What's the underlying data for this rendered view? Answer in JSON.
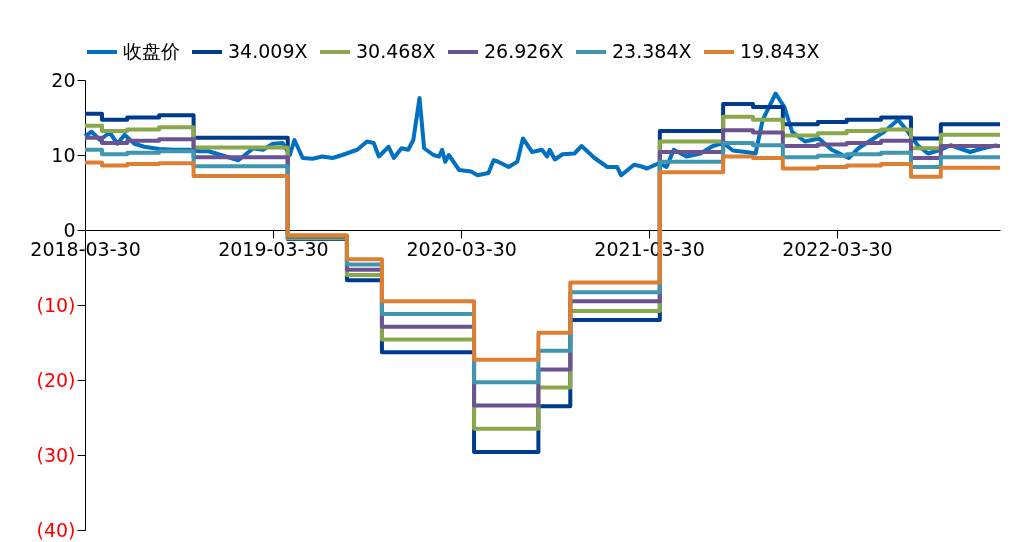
{
  "chart_data": {
    "type": "step",
    "legend": "top",
    "grid": false,
    "xlim": [
      "2018-03-30",
      "2023-02-10"
    ],
    "xticks": [
      "2018-03-30",
      "2019-03-30",
      "2020-03-30",
      "2021-03-30",
      "2022-03-30"
    ],
    "ylim": [
      -40,
      20
    ],
    "yticks": [
      20,
      10,
      0,
      {
        "value": -10,
        "label": "(10)"
      },
      {
        "value": -20,
        "label": "(20)"
      },
      {
        "value": -30,
        "label": "(30)"
      },
      {
        "value": -40,
        "label": "(40)"
      }
    ],
    "x": [
      "2018-03-30",
      "2018-05-02",
      "2018-06-20",
      "2018-08-21",
      "2018-10-27",
      "2019-04-28",
      "2019-08-21",
      "2019-10-28",
      "2020-04-24",
      "2020-08-27",
      "2020-10-28",
      "2021-04-20",
      "2021-08-21",
      "2021-10-18",
      "2021-12-15",
      "2022-02-21",
      "2022-04-18",
      "2022-06-24",
      "2022-08-21",
      "2022-10-18",
      "2023-02-10"
    ],
    "series": [
      {
        "name": "收盘价",
        "type": "line",
        "color": "#0070c0",
        "x": [
          "2018-03-30",
          "2018-04-12",
          "2018-04-28",
          "2018-05-17",
          "2018-06-01",
          "2018-06-15",
          "2018-07-04",
          "2018-07-23",
          "2018-08-21",
          "2018-09-19",
          "2018-10-18",
          "2018-11-06",
          "2018-11-25",
          "2018-12-24",
          "2019-01-22",
          "2019-02-20",
          "2019-03-11",
          "2019-03-30",
          "2019-04-18",
          "2019-05-02",
          "2019-05-11",
          "2019-05-27",
          "2019-06-15",
          "2019-07-04",
          "2019-07-24",
          "2019-08-12",
          "2019-09-10",
          "2019-09-29",
          "2019-10-12",
          "2019-10-22",
          "2019-11-10",
          "2019-11-20",
          "2019-12-05",
          "2019-12-18",
          "2019-12-28",
          "2020-01-09",
          "2020-01-18",
          "2020-02-05",
          "2020-02-16",
          "2020-02-22",
          "2020-02-28",
          "2020-03-06",
          "2020-03-26",
          "2020-04-18",
          "2020-05-01",
          "2020-05-22",
          "2020-06-01",
          "2020-06-10",
          "2020-06-30",
          "2020-07-17",
          "2020-07-28",
          "2020-08-15",
          "2020-09-03",
          "2020-09-13",
          "2020-09-18",
          "2020-09-28",
          "2020-10-13",
          "2020-11-05",
          "2020-11-19",
          "2020-12-14",
          "2021-01-08",
          "2021-01-27",
          "2021-02-04",
          "2021-03-01",
          "2021-03-14",
          "2021-03-26",
          "2021-04-18",
          "2021-05-03",
          "2021-05-17",
          "2021-06-11",
          "2021-07-08",
          "2021-08-01",
          "2021-08-21",
          "2021-09-09",
          "2021-10-04",
          "2021-10-23",
          "2021-11-06",
          "2021-12-01",
          "2021-12-18",
          "2022-01-02",
          "2022-01-27",
          "2022-02-23",
          "2022-03-20",
          "2022-04-22",
          "2022-05-11",
          "2022-06-05",
          "2022-06-30",
          "2022-07-27",
          "2022-08-15",
          "2022-09-03",
          "2022-09-23",
          "2022-10-18",
          "2022-11-06",
          "2022-12-14",
          "2023-01-08",
          "2023-02-04"
        ],
        "values": [
          12.5,
          13.1,
          12.0,
          13.0,
          11.5,
          12.7,
          11.5,
          11.1,
          10.8,
          10.7,
          10.7,
          10.5,
          10.5,
          9.9,
          9.3,
          10.9,
          10.7,
          11.5,
          11.6,
          10.0,
          12.0,
          9.6,
          9.5,
          9.8,
          9.6,
          10.0,
          10.7,
          11.8,
          11.6,
          9.8,
          11.1,
          9.6,
          10.9,
          10.7,
          12.0,
          17.6,
          10.9,
          10.0,
          9.8,
          10.7,
          9.1,
          10.0,
          8.0,
          7.8,
          7.3,
          7.6,
          9.3,
          9.1,
          8.4,
          9.1,
          12.2,
          10.4,
          10.7,
          9.8,
          10.7,
          9.4,
          10.1,
          10.2,
          11.2,
          9.6,
          8.4,
          8.4,
          7.3,
          8.7,
          8.5,
          8.2,
          8.9,
          8.4,
          10.7,
          9.8,
          10.2,
          11.2,
          11.6,
          10.6,
          10.4,
          10.2,
          14.7,
          18.2,
          16.4,
          13.1,
          11.8,
          12.2,
          10.7,
          9.6,
          10.9,
          12.0,
          13.1,
          14.7,
          13.1,
          11.3,
          10.2,
          10.7,
          11.3,
          10.4,
          10.9,
          11.3
        ]
      },
      {
        "name": "34.009X",
        "color": "#003a8c",
        "values": [
          15.5,
          14.7,
          15.0,
          15.3,
          12.3,
          -1.2,
          -6.7,
          -16.3,
          -29.6,
          -23.5,
          -12.0,
          13.2,
          16.8,
          16.4,
          14.1,
          14.4,
          14.7,
          15.0,
          12.2,
          14.1,
          14.1
        ]
      },
      {
        "name": "30.468X",
        "color": "#8aa84b",
        "values": [
          13.9,
          13.2,
          13.4,
          13.7,
          11.0,
          -1.1,
          -6.0,
          -14.6,
          -26.5,
          -21.0,
          -10.8,
          11.8,
          15.1,
          14.7,
          12.6,
          12.9,
          13.2,
          13.4,
          10.9,
          12.7,
          12.7
        ]
      },
      {
        "name": "26.926X",
        "color": "#6b5391",
        "values": [
          12.3,
          11.6,
          11.9,
          12.1,
          9.7,
          -0.9,
          -5.3,
          -12.9,
          -23.4,
          -18.6,
          -9.5,
          10.4,
          13.3,
          13.0,
          11.2,
          11.4,
          11.6,
          11.9,
          9.6,
          11.2,
          11.2
        ]
      },
      {
        "name": "23.384X",
        "color": "#3f96ae",
        "values": [
          10.7,
          10.1,
          10.3,
          10.5,
          8.5,
          -0.8,
          -4.6,
          -11.2,
          -20.3,
          -16.1,
          -8.3,
          9.1,
          11.6,
          11.3,
          9.7,
          9.9,
          10.1,
          10.3,
          8.4,
          9.7,
          9.7
        ]
      },
      {
        "name": "19.843X",
        "color": "#dd7f33",
        "values": [
          9.0,
          8.6,
          8.8,
          8.9,
          7.2,
          -0.7,
          -3.9,
          -9.5,
          -17.3,
          -13.7,
          -7.0,
          7.7,
          9.8,
          9.6,
          8.2,
          8.4,
          8.6,
          8.8,
          7.1,
          8.3,
          8.3
        ]
      }
    ]
  }
}
